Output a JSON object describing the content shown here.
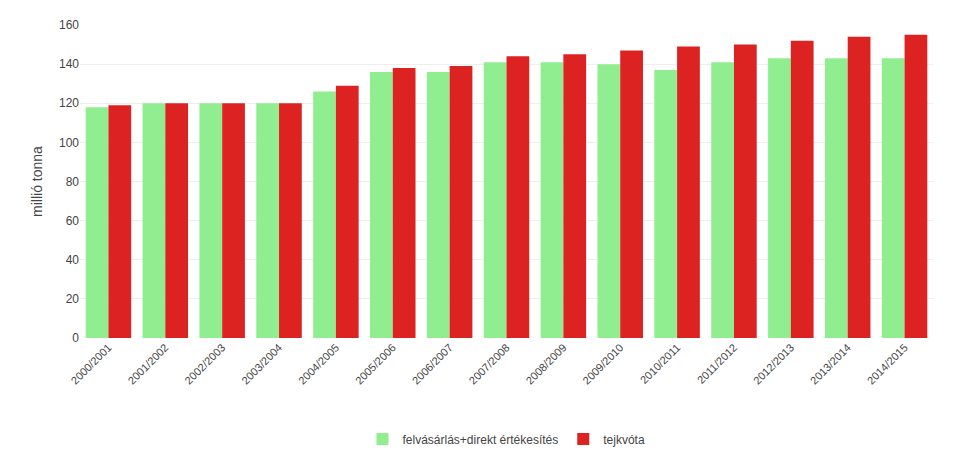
{
  "chart_data": {
    "type": "bar",
    "categories": [
      "2000/2001",
      "2001/2002",
      "2002/2003",
      "2003/2004",
      "2004/2005",
      "2005/2006",
      "2006/2007",
      "2007/2008",
      "2008/2009",
      "2009/2010",
      "2010/2011",
      "2011/2012",
      "2012/2013",
      "2013/2014",
      "2014/2015"
    ],
    "series": [
      {
        "name": "felvásárlás+direkt értékesítés",
        "color": "#90EE90",
        "values": [
          118,
          120,
          120,
          120,
          126,
          136,
          136,
          141,
          141,
          140,
          137,
          141,
          143,
          143,
          143
        ]
      },
      {
        "name": "tejkvóta",
        "color": "#DD2222",
        "values": [
          119,
          120,
          120,
          120,
          129,
          138,
          139,
          144,
          145,
          147,
          149,
          150,
          152,
          154,
          155
        ]
      }
    ],
    "ylabel": "millió tonna",
    "ylim": [
      0,
      160
    ],
    "yticks": [
      0,
      20,
      40,
      60,
      80,
      100,
      120,
      140,
      160
    ],
    "grid": true,
    "legend": "bottom"
  }
}
